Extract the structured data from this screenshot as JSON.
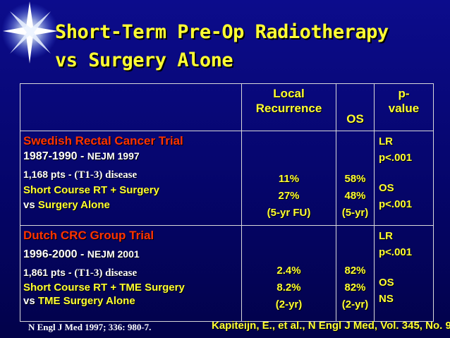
{
  "title_line1": "Short-Term Pre-Op Radiotherapy",
  "title_line2": "vs Surgery Alone",
  "columns": {
    "local_recurrence_1": "Local",
    "local_recurrence_2": "Recurrence",
    "os": "OS",
    "pvalue_1": "p-",
    "pvalue_2": "value"
  },
  "trials": [
    {
      "name": "Swedish Rectal Cancer Trial",
      "years": "1987-1990 - ",
      "journal": "NEJM 1997",
      "pts": "1,168 pts  - ",
      "disease": "(T1-3) disease",
      "arm1": "Short Course RT + Surgery",
      "arm2_prefix": "vs ",
      "arm2": "Surgery Alone",
      "lr": [
        "11%",
        "27%",
        "(5-yr FU)"
      ],
      "os": [
        "58%",
        "48%",
        "(5-yr)"
      ],
      "pval": [
        "LR",
        "p<.001",
        "OS",
        "p<.001"
      ]
    },
    {
      "name": "Dutch CRC Group Trial",
      "years": "1996-2000 - ",
      "journal": "NEJM 2001",
      "pts": "1,861 pts - ",
      "disease": "(T1-3) disease",
      "arm1": "Short Course RT + TME Surgery",
      "arm2_prefix": "vs ",
      "arm2": "TME Surgery Alone",
      "lr": [
        "2.4%",
        "8.2%",
        "(2-yr)"
      ],
      "os": [
        "82%",
        "82%",
        "(2-yr)"
      ],
      "pval": [
        "LR",
        "p<.001",
        "OS",
        "NS"
      ]
    }
  ],
  "footer_left": "N Engl J Med 1997; 336: 980-7.",
  "footer_right": "Kapiteijn, E., et al., N Engl J Med, Vol. 345, No. 9",
  "colors": {
    "background": "#05056a",
    "title": "#ffff33",
    "trial_name": "#ff3300"
  }
}
